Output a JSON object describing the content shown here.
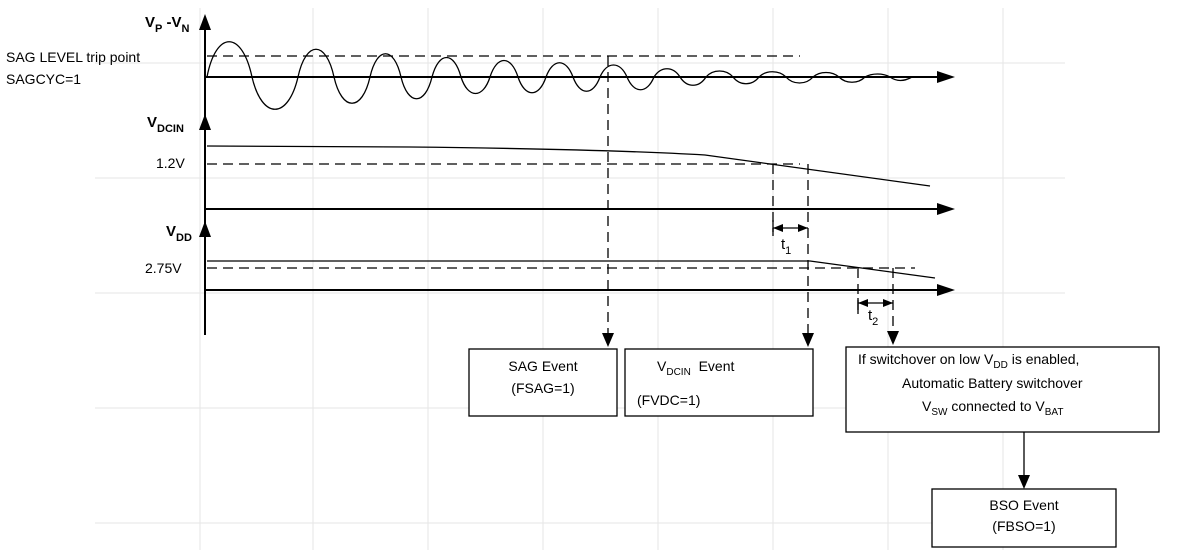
{
  "axes": {
    "vp_vn": {
      "main": "V",
      "sub1": "P",
      "sep": " -V",
      "sub2": "N"
    },
    "vdcin": {
      "main": "V",
      "sub": "DCIN"
    },
    "vdd": {
      "main": "V",
      "sub": "DD"
    }
  },
  "levels": {
    "sag_line1": "SAG LEVEL trip point",
    "sag_line2": "SAGCYC=1",
    "vdcin_level": "1.2V",
    "vdd_level": "2.75V"
  },
  "intervals": {
    "t1": {
      "main": "t",
      "sub": "1"
    },
    "t2": {
      "main": "t",
      "sub": "2"
    }
  },
  "events": {
    "sag": {
      "line1": "SAG Event",
      "line2": "(FSAG=1)"
    },
    "vdcin": {
      "line1_main": "V",
      "line1_sub": "DCIN",
      "line1_rest": "  Event",
      "line2": "(FVDC=1)"
    },
    "switchover": {
      "line1_a": "If switchover on low V",
      "line1_sub": "DD",
      "line1_b": " is enabled,",
      "line2": "Automatic Battery switchover",
      "line3_a": "V",
      "line3_sub1": "SW",
      "line3_b": " connected to V",
      "line3_sub2": "BAT"
    },
    "bso": {
      "line1": "BSO Event",
      "line2": "(FBSO=1)"
    }
  }
}
